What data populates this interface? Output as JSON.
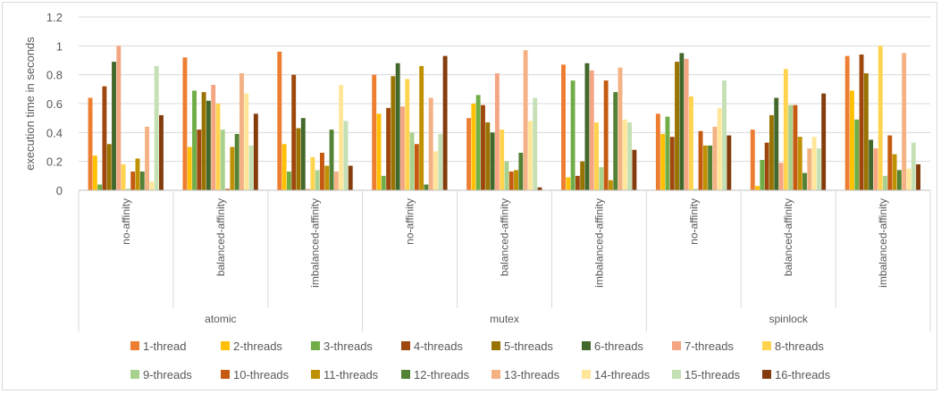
{
  "chart_data": {
    "type": "bar",
    "ylabel": "execution time in seconds",
    "ylim": [
      0,
      1.2
    ],
    "yticks": [
      "0",
      "0.2",
      "0.4",
      "0.6",
      "0.8",
      "1",
      "1.2"
    ],
    "grid": true,
    "legend_position": "bottom",
    "groups": [
      {
        "name": "atomic",
        "categories": [
          "no-affinity",
          "balanced-affinity",
          "imbalanced-affinity"
        ]
      },
      {
        "name": "mutex",
        "categories": [
          "no-affinity",
          "balanced-affinity",
          "imbalanced-affinity"
        ]
      },
      {
        "name": "spinlock",
        "categories": [
          "no-affinity",
          "balanced-affinity",
          "imbalanced-affinity"
        ]
      }
    ],
    "series": [
      {
        "name": "1-thread",
        "color": "#ED7D31",
        "values": [
          0.64,
          0.92,
          0.96,
          0.8,
          0.5,
          0.87,
          0.53,
          0.42,
          0.93
        ]
      },
      {
        "name": "2-threads",
        "color": "#FFC000",
        "values": [
          0.24,
          0.3,
          0.32,
          0.53,
          0.6,
          0.09,
          0.39,
          0.03,
          0.69
        ]
      },
      {
        "name": "3-threads",
        "color": "#70AD47",
        "values": [
          0.04,
          0.69,
          0.13,
          0.1,
          0.66,
          0.76,
          0.51,
          0.21,
          0.49
        ]
      },
      {
        "name": "4-threads",
        "color": "#9E480E",
        "values": [
          0.72,
          0.42,
          0.8,
          0.57,
          0.59,
          0.1,
          0.37,
          0.33,
          0.94
        ]
      },
      {
        "name": "5-threads",
        "color": "#997300",
        "values": [
          0.32,
          0.68,
          0.43,
          0.79,
          0.47,
          0.2,
          0.89,
          0.52,
          0.81
        ]
      },
      {
        "name": "6-threads",
        "color": "#43682B",
        "values": [
          0.89,
          0.62,
          0.5,
          0.88,
          0.4,
          0.88,
          0.95,
          0.64,
          0.35
        ]
      },
      {
        "name": "7-threads",
        "color": "#F4A582",
        "values": [
          1.0,
          0.73,
          0.01,
          0.58,
          0.81,
          0.83,
          0.91,
          0.19,
          0.29
        ]
      },
      {
        "name": "8-threads",
        "color": "#FFD34E",
        "values": [
          0.18,
          0.6,
          0.23,
          0.77,
          0.42,
          0.47,
          0.65,
          0.84,
          1.0
        ]
      },
      {
        "name": "9-threads",
        "color": "#A9D18E",
        "values": [
          0.01,
          0.42,
          0.14,
          0.4,
          0.2,
          0.16,
          0.01,
          0.59,
          0.1
        ]
      },
      {
        "name": "10-threads",
        "color": "#C55A11",
        "values": [
          0.13,
          0.01,
          0.26,
          0.32,
          0.13,
          0.76,
          0.41,
          0.59,
          0.38
        ]
      },
      {
        "name": "11-threads",
        "color": "#BF9000",
        "values": [
          0.22,
          0.3,
          0.17,
          0.86,
          0.14,
          0.07,
          0.31,
          0.37,
          0.25
        ]
      },
      {
        "name": "12-threads",
        "color": "#548235",
        "values": [
          0.13,
          0.39,
          0.42,
          0.04,
          0.26,
          0.68,
          0.31,
          0.12,
          0.14
        ]
      },
      {
        "name": "13-threads",
        "color": "#F4B183",
        "values": [
          0.44,
          0.81,
          0.13,
          0.64,
          0.97,
          0.85,
          0.44,
          0.29,
          0.95
        ]
      },
      {
        "name": "14-threads",
        "color": "#FFE699",
        "values": [
          0.06,
          0.67,
          0.73,
          0.27,
          0.48,
          0.49,
          0.57,
          0.37,
          0.15
        ]
      },
      {
        "name": "15-threads",
        "color": "#C5E0B4",
        "values": [
          0.86,
          0.31,
          0.48,
          0.39,
          0.64,
          0.47,
          0.76,
          0.29,
          0.33
        ]
      },
      {
        "name": "16-threads",
        "color": "#843C0C",
        "values": [
          0.52,
          0.53,
          0.17,
          0.93,
          0.02,
          0.28,
          0.38,
          0.67,
          0.18
        ]
      }
    ]
  }
}
